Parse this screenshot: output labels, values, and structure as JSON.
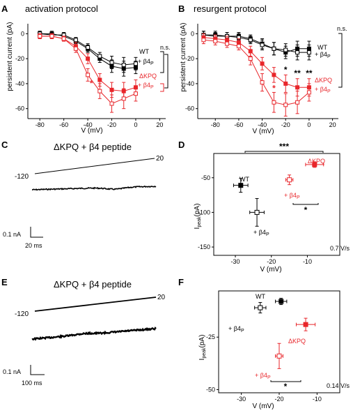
{
  "panels": {
    "A": {
      "label": "A",
      "title": "activation protocol"
    },
    "B": {
      "label": "B",
      "title": "resurgent protocol"
    },
    "C": {
      "label": "C",
      "title": "ΔKPQ + β4 peptide",
      "v_start": "-120",
      "v_end": "20",
      "scale_i": "0.1 nA",
      "scale_t": "20 ms"
    },
    "D": {
      "label": "D",
      "rate": "0.7 V/s",
      "sig_top": "***",
      "sig_bottom": "*"
    },
    "E": {
      "label": "E",
      "title": "ΔKPQ + β4 peptide",
      "v_start": "-120",
      "v_end": "20",
      "scale_i": "0.1 nA",
      "scale_t": "100 ms"
    },
    "F": {
      "label": "F",
      "rate": "0.14 V/s",
      "sig_bottom": "*"
    }
  },
  "labels": {
    "wt": "WT",
    "dkpq": "ΔKPQ",
    "plus_b4": "+ β4",
    "sub_p": "P",
    "ns": "n.s.",
    "persistent_ylabel": "persistent current (pA)",
    "v_xlabel": "V (mV)",
    "ipeak_main": "I",
    "ipeak_sub": "peak",
    "ipeak_unit": "(pA)"
  },
  "colors": {
    "wt": "#000000",
    "dkpq": "#e8262b"
  },
  "chart_data": [
    {
      "panel": "A",
      "type": "line",
      "xlabel": "V (mV)",
      "ylabel": "persistent current (pA)",
      "xlim": [
        -90,
        25
      ],
      "ylim": [
        -68,
        8
      ],
      "xticks": [
        -80,
        -60,
        -40,
        -20,
        0,
        20
      ],
      "yticks": [
        0,
        -20,
        -40,
        -60
      ],
      "series": [
        {
          "name": "WT",
          "style": "filled-square",
          "color": "#000000",
          "x": [
            -80,
            -70,
            -60,
            -50,
            -40,
            -30,
            -20,
            -10,
            0
          ],
          "y": [
            0,
            0,
            -2,
            -6,
            -12,
            -20,
            -26,
            -28,
            -27
          ],
          "err": [
            2,
            2,
            2,
            2,
            3,
            3,
            5,
            6,
            5
          ]
        },
        {
          "name": "WT + β4P",
          "style": "open-square",
          "color": "#000000",
          "x": [
            -80,
            -70,
            -60,
            -50,
            -40,
            -30,
            -20,
            -10,
            0
          ],
          "y": [
            0,
            -1,
            -1,
            -5,
            -11,
            -18,
            -23,
            -25,
            -24
          ],
          "err": [
            2,
            2,
            2,
            2,
            3,
            3,
            5,
            6,
            5
          ]
        },
        {
          "name": "ΔKPQ",
          "style": "filled-square",
          "color": "#e8262b",
          "x": [
            -80,
            -70,
            -60,
            -50,
            -40,
            -30,
            -20,
            -10,
            0
          ],
          "y": [
            -2,
            -2,
            -4,
            -10,
            -20,
            -37,
            -45,
            -46,
            -43
          ],
          "err": [
            2,
            2,
            2,
            3,
            4,
            5,
            6,
            7,
            6
          ]
        },
        {
          "name": "ΔKPQ + β4P",
          "style": "open-square",
          "color": "#e8262b",
          "x": [
            -80,
            -70,
            -60,
            -50,
            -40,
            -30,
            -20,
            -10,
            0
          ],
          "y": [
            -2,
            -2,
            -4,
            -12,
            -33,
            -46,
            -56,
            -52,
            -48
          ],
          "err": [
            2,
            2,
            2,
            3,
            5,
            6,
            7,
            8,
            6
          ]
        }
      ],
      "annotations": [
        {
          "text": "*",
          "x": -37,
          "y": -42
        }
      ]
    },
    {
      "panel": "B",
      "type": "line",
      "xlabel": "V (mV)",
      "ylabel": "persistent current (pA)",
      "xlim": [
        -95,
        25
      ],
      "ylim": [
        -68,
        8
      ],
      "xticks": [
        -80,
        -60,
        -40,
        -20,
        0,
        20
      ],
      "yticks": [
        0,
        -20,
        -40,
        -60
      ],
      "series": [
        {
          "name": "WT",
          "style": "filled-square",
          "color": "#000000",
          "x": [
            -90,
            -80,
            -70,
            -60,
            -50,
            -40,
            -30,
            -20,
            -10,
            0
          ],
          "y": [
            -1,
            -1,
            -2,
            -2,
            -4,
            -8,
            -12,
            -15,
            -12,
            -12
          ],
          "err": [
            3,
            3,
            3,
            3,
            3,
            4,
            5,
            5,
            6,
            6
          ]
        },
        {
          "name": "WT + β4P",
          "style": "open-square",
          "color": "#000000",
          "x": [
            -90,
            -80,
            -70,
            -60,
            -50,
            -40,
            -30,
            -20,
            -10,
            0
          ],
          "y": [
            -1,
            -2,
            -2,
            -3,
            -5,
            -9,
            -12,
            -13,
            -15,
            -15
          ],
          "err": [
            3,
            3,
            3,
            3,
            3,
            4,
            5,
            5,
            6,
            6
          ]
        },
        {
          "name": "ΔKPQ",
          "style": "filled-square",
          "color": "#e8262b",
          "x": [
            -90,
            -80,
            -70,
            -60,
            -50,
            -40,
            -30,
            -20,
            -10,
            0
          ],
          "y": [
            -3,
            -4,
            -5,
            -7,
            -14,
            -24,
            -33,
            -40,
            -43,
            -43
          ],
          "err": [
            3,
            3,
            3,
            3,
            4,
            5,
            6,
            7,
            7,
            7
          ]
        },
        {
          "name": "ΔKPQ + β4P",
          "style": "open-square",
          "color": "#e8262b",
          "x": [
            -90,
            -80,
            -70,
            -60,
            -50,
            -40,
            -30,
            -20,
            -10,
            0
          ],
          "y": [
            -5,
            -6,
            -8,
            -10,
            -20,
            -39,
            -55,
            -57,
            -55,
            -47
          ],
          "err": [
            3,
            3,
            3,
            3,
            5,
            7,
            8,
            9,
            9,
            7
          ]
        }
      ],
      "annotations": [
        {
          "text": "*",
          "x": -30,
          "y": -46
        },
        {
          "text": "*",
          "x": -20,
          "y": -31
        },
        {
          "text": "**",
          "x": -10,
          "y": -34
        },
        {
          "text": "**",
          "x": 0,
          "y": -34
        }
      ]
    },
    {
      "panel": "D",
      "type": "scatter",
      "xlabel": "V (mV)",
      "ylabel": "Ipeak(pA)",
      "xlim": [
        -36,
        -1
      ],
      "ylim": [
        -162,
        -15
      ],
      "xticks": [
        -30,
        -20,
        -10
      ],
      "yticks": [
        -50,
        -100,
        -150
      ],
      "points": [
        {
          "name": "WT",
          "style": "filled-square",
          "color": "#000000",
          "x": -28.5,
          "y": -61,
          "xerr": 2,
          "yerr": 10
        },
        {
          "name": "+ β4P",
          "style": "open-square",
          "color": "#000000",
          "x": -24,
          "y": -100,
          "xerr": 2,
          "yerr": 20
        },
        {
          "name": "+ β4P",
          "style": "open-square",
          "color": "#e8262b",
          "x": -15,
          "y": -53,
          "xerr": 1,
          "yerr": 7
        },
        {
          "name": "ΔKPQ",
          "style": "filled-square",
          "color": "#e8262b",
          "x": -8,
          "y": -31,
          "xerr": 2.5,
          "yerr": 4
        }
      ]
    },
    {
      "panel": "F",
      "type": "scatter",
      "xlabel": "V (mV)",
      "ylabel": "Ipeak(pA)",
      "xlim": [
        -36,
        -4
      ],
      "ylim": [
        -51.5,
        -3
      ],
      "xticks": [
        -30,
        -20,
        -10
      ],
      "yticks": [
        -25,
        -50
      ],
      "points": [
        {
          "name": "WT",
          "style": "filled-square",
          "color": "#000000",
          "x": -19.5,
          "y": -8,
          "xerr": 1.5,
          "yerr": 1.5
        },
        {
          "name": "+ β4P",
          "style": "open-square",
          "color": "#000000",
          "x": -25,
          "y": -11,
          "xerr": 1.5,
          "yerr": 2.5
        },
        {
          "name": "ΔKPQ",
          "style": "filled-square",
          "color": "#e8262b",
          "x": -13,
          "y": -19,
          "xerr": 2.5,
          "yerr": 3
        },
        {
          "name": "+ β4P",
          "style": "open-square",
          "color": "#e8262b",
          "x": -20,
          "y": -34,
          "xerr": 1,
          "yerr": 6
        }
      ]
    }
  ]
}
